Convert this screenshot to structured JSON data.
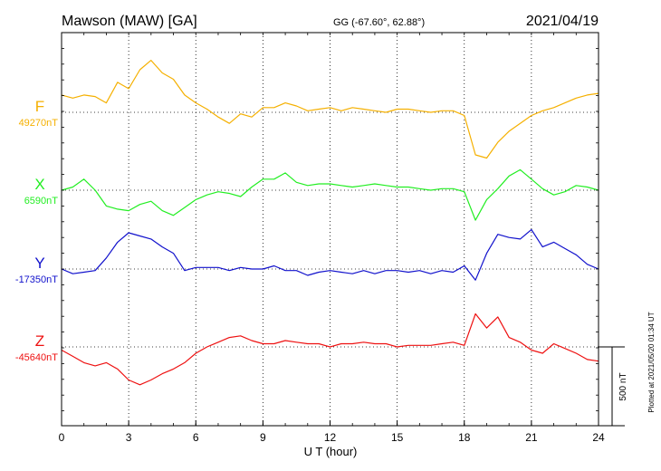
{
  "header": {
    "station": "Mawson (MAW)  [GA]",
    "coords": "GG (-67.60°,  62.88°)",
    "date": "2021/04/19"
  },
  "footer": {
    "plotted": "Plotted at 2021/05/20 01:34 UT"
  },
  "chart_data": {
    "type": "line",
    "xlabel": "U T (hour)",
    "xlim": [
      0,
      24
    ],
    "xticks": [
      "0",
      "3",
      "6",
      "9",
      "12",
      "15",
      "18",
      "21",
      "24"
    ],
    "scale_bar_label": "500 nT",
    "scale_bar_nT": 500,
    "series": [
      {
        "name": "F",
        "baseline_label": "49270nT",
        "baseline": 49270,
        "color": "#f5b000",
        "x": [
          0,
          0.5,
          1,
          1.5,
          2,
          2.5,
          3,
          3.5,
          4,
          4.5,
          5,
          5.5,
          6,
          6.5,
          7,
          7.5,
          8,
          8.5,
          9,
          9.5,
          10,
          10.5,
          11,
          11.5,
          12,
          12.5,
          13,
          13.5,
          14,
          14.5,
          15,
          15.5,
          16,
          16.5,
          17,
          17.5,
          18,
          18.5,
          19,
          19.5,
          20,
          20.5,
          21,
          21.5,
          22,
          22.5,
          23,
          23.5,
          24
        ],
        "y": [
          49380,
          49360,
          49380,
          49370,
          49330,
          49460,
          49420,
          49540,
          49600,
          49520,
          49480,
          49380,
          49330,
          49290,
          49240,
          49200,
          49260,
          49240,
          49300,
          49300,
          49330,
          49310,
          49280,
          49290,
          49300,
          49280,
          49300,
          49290,
          49280,
          49270,
          49290,
          49290,
          49280,
          49270,
          49280,
          49280,
          49250,
          49000,
          48980,
          49080,
          49150,
          49200,
          49250,
          49280,
          49300,
          49330,
          49360,
          49380,
          49390
        ]
      },
      {
        "name": "X",
        "baseline_label": "6590nT",
        "baseline": 6590,
        "color": "#22ee22",
        "x": [
          0,
          0.5,
          1,
          1.5,
          2,
          2.5,
          3,
          3.5,
          4,
          4.5,
          5,
          5.5,
          6,
          6.5,
          7,
          7.5,
          8,
          8.5,
          9,
          9.5,
          10,
          10.5,
          11,
          11.5,
          12,
          12.5,
          13,
          13.5,
          14,
          14.5,
          15,
          15.5,
          16,
          16.5,
          17,
          17.5,
          18,
          18.5,
          19,
          19.5,
          20,
          20.5,
          21,
          21.5,
          22,
          22.5,
          23,
          23.5,
          24
        ],
        "y": [
          6590,
          6610,
          6660,
          6590,
          6490,
          6470,
          6460,
          6500,
          6520,
          6460,
          6430,
          6480,
          6530,
          6560,
          6580,
          6570,
          6550,
          6610,
          6660,
          6660,
          6700,
          6640,
          6620,
          6630,
          6630,
          6620,
          6610,
          6620,
          6630,
          6620,
          6610,
          6610,
          6600,
          6590,
          6600,
          6600,
          6580,
          6400,
          6530,
          6600,
          6680,
          6720,
          6660,
          6600,
          6560,
          6580,
          6620,
          6610,
          6590
        ]
      },
      {
        "name": "Y",
        "baseline_label": "-17350nT",
        "baseline": -17350,
        "color": "#1111cc",
        "x": [
          0,
          0.5,
          1,
          1.5,
          2,
          2.5,
          3,
          3.5,
          4,
          4.5,
          5,
          5.5,
          6,
          6.5,
          7,
          7.5,
          8,
          8.5,
          9,
          9.5,
          10,
          10.5,
          11,
          11.5,
          12,
          12.5,
          13,
          13.5,
          14,
          14.5,
          15,
          15.5,
          16,
          16.5,
          17,
          17.5,
          18,
          18.5,
          19,
          19.5,
          20,
          20.5,
          21,
          21.5,
          22,
          22.5,
          23,
          23.5,
          24
        ],
        "y": [
          -17350,
          -17380,
          -17370,
          -17360,
          -17280,
          -17180,
          -17120,
          -17140,
          -17160,
          -17210,
          -17250,
          -17360,
          -17340,
          -17340,
          -17340,
          -17360,
          -17340,
          -17350,
          -17350,
          -17330,
          -17360,
          -17360,
          -17390,
          -17370,
          -17360,
          -17370,
          -17380,
          -17360,
          -17380,
          -17360,
          -17360,
          -17370,
          -17360,
          -17380,
          -17360,
          -17370,
          -17330,
          -17420,
          -17250,
          -17130,
          -17150,
          -17160,
          -17100,
          -17210,
          -17180,
          -17220,
          -17260,
          -17320,
          -17350
        ]
      },
      {
        "name": "Z",
        "baseline_label": "-45640nT",
        "baseline": -45640,
        "color": "#ee1111",
        "x": [
          0,
          0.5,
          1,
          1.5,
          2,
          2.5,
          3,
          3.5,
          4,
          4.5,
          5,
          5.5,
          6,
          6.5,
          7,
          7.5,
          8,
          8.5,
          9,
          9.5,
          10,
          10.5,
          11,
          11.5,
          12,
          12.5,
          13,
          13.5,
          14,
          14.5,
          15,
          15.5,
          16,
          16.5,
          17,
          17.5,
          18,
          18.5,
          19,
          19.5,
          20,
          20.5,
          21,
          21.5,
          22,
          22.5,
          23,
          23.5,
          24
        ],
        "y": [
          -45660,
          -45700,
          -45740,
          -45760,
          -45740,
          -45780,
          -45850,
          -45880,
          -45850,
          -45810,
          -45780,
          -45740,
          -45680,
          -45640,
          -45610,
          -45580,
          -45570,
          -45600,
          -45620,
          -45620,
          -45600,
          -45610,
          -45620,
          -45620,
          -45640,
          -45620,
          -45620,
          -45610,
          -45620,
          -45620,
          -45640,
          -45630,
          -45630,
          -45630,
          -45620,
          -45610,
          -45630,
          -45430,
          -45520,
          -45450,
          -45580,
          -45610,
          -45660,
          -45680,
          -45620,
          -45650,
          -45680,
          -45720,
          -45730
        ]
      }
    ]
  }
}
